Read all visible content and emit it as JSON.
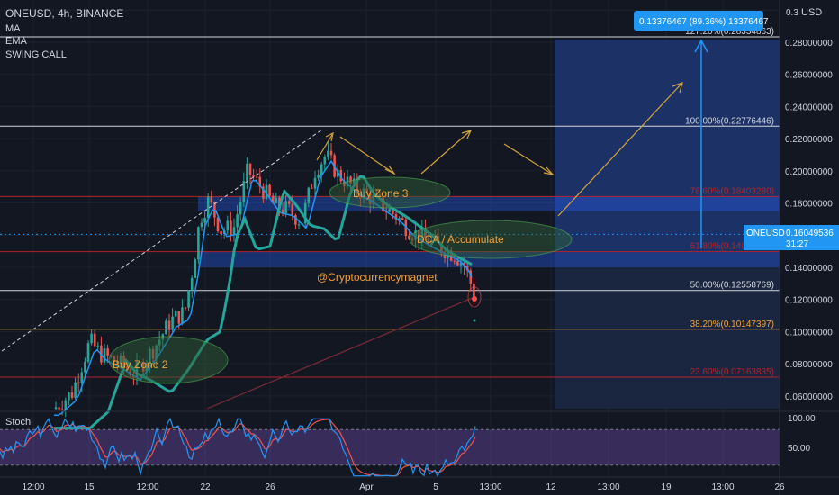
{
  "header": {
    "symbol_line": "ONEUSD, 4h, BINANCE",
    "indicators": [
      "MA",
      "EMA",
      "SWING CALL"
    ],
    "currency": "USD",
    "stoch_label": "Stoch"
  },
  "colors": {
    "background": "#131722",
    "grid": "#1e222d",
    "candle_up": "#26a69a",
    "candle_down": "#ef5350",
    "ma_line": "#2196f3",
    "ema_line": "#26a69a",
    "long_ma": "#7b2a38",
    "fib_white": "#d1d4dc",
    "fib_red": "#b2242a",
    "fib_orange": "#f0a23a",
    "zone_fill": "#2962ff",
    "arrow_gold": "#d4a53a",
    "target_arrow": "#2196f3",
    "zone_ellipse": "#4caf50",
    "stoch_k": "#2196f3",
    "stoch_d": "#ef5350",
    "stoch_band": "#7e57c2"
  },
  "annotations": {
    "buy_zone_2": "Buy Zone 2",
    "buy_zone_3": "Buy Zone 3",
    "dca_accumulate": "DCA / Accumulate",
    "author": "@Cryptocurrencymagnet"
  },
  "measure_label": "0.13376467 (89.36%) 13376467",
  "current_price": {
    "symbol": "ONEUSD",
    "price": "0.16049536",
    "countdown": "31:27",
    "value": 0.16049536
  },
  "chart_data": {
    "type": "candlestick",
    "y_axis": {
      "range": [
        0.042,
        0.3
      ],
      "ticks": [
        0.3,
        0.28,
        0.26,
        0.24,
        0.22,
        0.2,
        0.18,
        0.16,
        0.14,
        0.12,
        0.1,
        0.08,
        0.06
      ],
      "tick_labels": [
        "0.3",
        "0.28000000",
        "0.26000000",
        "0.24000000",
        "0.22000000",
        "0.20000000",
        "0.18000000",
        "0.16000000",
        "0.14000000",
        "0.12000000",
        "0.10000000",
        "0.08000000",
        "0.06000000"
      ]
    },
    "x_axis": {
      "tick_labels": [
        "12:00",
        "15",
        "12:00",
        "22",
        "26",
        "Apr",
        "5",
        "13:00",
        "12",
        "13:00",
        "19",
        "13:00",
        "26"
      ]
    },
    "fib_levels": [
      {
        "label": "127.20%(0.28334863)",
        "value": 0.28334863,
        "color": "#d1d4dc"
      },
      {
        "label": "100.00%(0.22776446)",
        "value": 0.22776446,
        "color": "#d1d4dc"
      },
      {
        "label": "78.60%(0.18403280)",
        "value": 0.1840328,
        "color": "#b2242a"
      },
      {
        "label": "61.80%(0.14970141)",
        "value": 0.14970141,
        "color": "#b2242a"
      },
      {
        "label": "50.00%(0.12558769)",
        "value": 0.12558769,
        "color": "#d1d4dc"
      },
      {
        "label": "38.20%(0.10147397)",
        "value": 0.10147397,
        "color": "#f0a23a"
      },
      {
        "label": "23.60%(0.07163835)",
        "value": 0.07163835,
        "color": "#b2242a"
      }
    ],
    "stoch_axis": {
      "ticks": [
        100,
        50
      ],
      "tick_labels": [
        "100.00",
        "50.00"
      ],
      "bands": [
        80,
        20
      ]
    }
  }
}
